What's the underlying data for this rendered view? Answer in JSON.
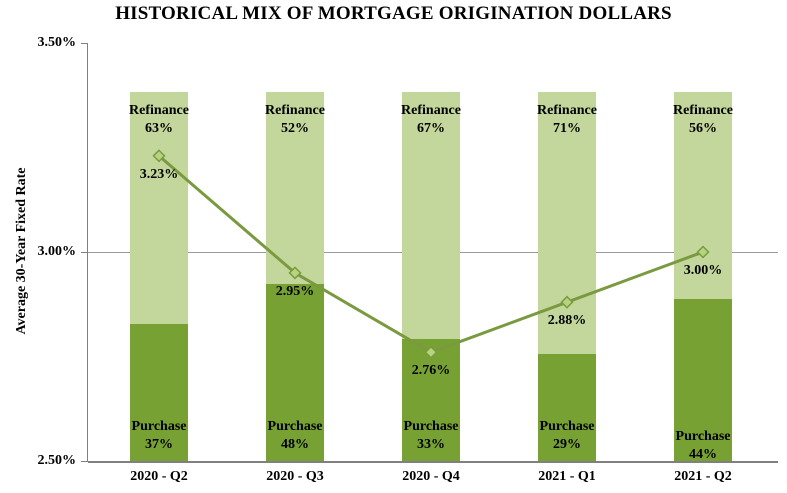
{
  "chart_data": {
    "type": "combo (100% stacked bar + line overlay)",
    "title": "HISTORICAL MIX OF MORTGAGE ORIGINATION DOLLARS",
    "ylabel": "Average 30-Year Fixed Rate",
    "categories": [
      "2020 - Q2",
      "2020 - Q3",
      "2020 - Q4",
      "2021 - Q1",
      "2021 - Q2"
    ],
    "bar_series": [
      {
        "name": "Purchase",
        "values": [
          37,
          48,
          33,
          29,
          44
        ],
        "unit": "%",
        "color": "#77a133"
      },
      {
        "name": "Refinance",
        "values": [
          63,
          52,
          67,
          71,
          56
        ],
        "unit": "%",
        "color": "#c3d69b"
      }
    ],
    "line_series": {
      "name": "Average 30-Year Fixed Rate",
      "values": [
        3.23,
        2.95,
        2.76,
        2.88,
        3.0
      ],
      "labels": [
        "3.23%",
        "2.95%",
        "2.76%",
        "2.88%",
        "3.00%"
      ],
      "color": "#7a9a3f",
      "marker": "diamond",
      "marker_fill": "#b6d37f"
    },
    "y_axis": {
      "min": 2.5,
      "max": 3.5,
      "ticks": [
        {
          "value": 3.5,
          "label": "3.50%"
        },
        {
          "value": 3.0,
          "label": "3.00%"
        },
        {
          "value": 2.5,
          "label": "2.50%"
        }
      ],
      "gridlines": [
        3.0
      ]
    },
    "legend": "none",
    "grid": "horizontal major only",
    "colors": {
      "axis": "#808080",
      "gridline": "#9a9a9a",
      "text": "#000000",
      "background": "#ffffff"
    }
  }
}
